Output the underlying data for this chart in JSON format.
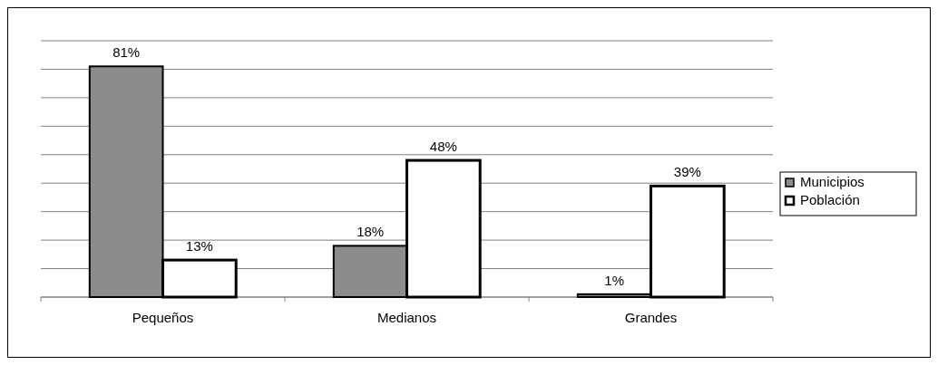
{
  "chart_data": {
    "type": "bar",
    "categories": [
      "Pequeños",
      "Medianos",
      "Grandes"
    ],
    "series": [
      {
        "name": "Municipios",
        "color": "#8c8c8c",
        "values": [
          81,
          18,
          1
        ],
        "value_labels": [
          "81%",
          "18%",
          "1%"
        ]
      },
      {
        "name": "Población",
        "color": "#ffffff",
        "values": [
          13,
          48,
          39
        ],
        "value_labels": [
          "13%",
          "48%",
          "39%"
        ]
      }
    ],
    "ylim": [
      0,
      90
    ],
    "yticks": [
      {
        "value": 0,
        "label": null
      },
      {
        "value": 10,
        "label": null
      },
      {
        "value": 20,
        "label": null
      },
      {
        "value": 30,
        "label": null
      },
      {
        "value": 40,
        "label": null
      },
      {
        "value": 50,
        "label": null
      },
      {
        "value": 60,
        "label": null
      },
      {
        "value": 70,
        "label": null
      },
      {
        "value": 80,
        "label": null
      },
      {
        "value": 90,
        "label": null
      }
    ],
    "grid": "y",
    "legend": "right",
    "tick_labels": "x"
  }
}
